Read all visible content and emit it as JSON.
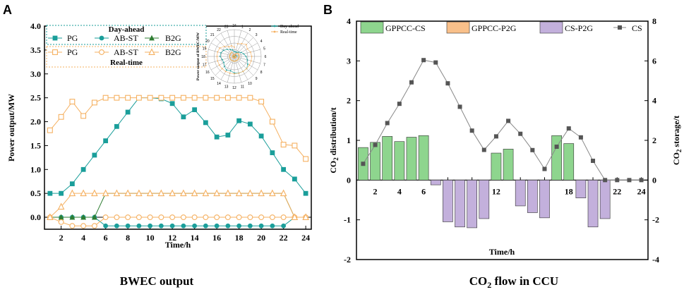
{
  "panels": {
    "A": {
      "letter": "A",
      "caption": "BWEC output",
      "chart_data": {
        "type": "line",
        "xlabel": "Time/h",
        "ylabel": "Power output/MW",
        "xlim": [
          0.5,
          24.5
        ],
        "ylim": [
          -0.25,
          4.0
        ],
        "xticks": [
          2,
          4,
          6,
          8,
          10,
          12,
          14,
          16,
          18,
          20,
          22,
          24
        ],
        "yticks": [
          0.0,
          0.5,
          1.0,
          1.5,
          2.0,
          2.5,
          3.0,
          3.5,
          4.0
        ],
        "x": [
          1,
          2,
          3,
          4,
          5,
          6,
          7,
          8,
          9,
          10,
          11,
          12,
          13,
          14,
          15,
          16,
          17,
          18,
          19,
          20,
          21,
          22,
          23,
          24
        ],
        "legend_day_ahead_title": "Day-ahead",
        "legend_real_time_title": "Real-time",
        "series": [
          {
            "name": "PG",
            "group": "Day-ahead",
            "color": "#1a9e9a",
            "marker": "square",
            "values": [
              0.5,
              0.5,
              0.7,
              1.0,
              1.3,
              1.6,
              1.9,
              2.2,
              2.5,
              2.5,
              2.48,
              2.38,
              2.1,
              2.25,
              1.98,
              1.68,
              1.72,
              2.02,
              1.95,
              1.7,
              1.35,
              1.0,
              0.8,
              0.5
            ]
          },
          {
            "name": "AB-ST",
            "group": "Day-ahead",
            "color": "#1a9e9a",
            "marker": "circle",
            "values": [
              0,
              0,
              0,
              0,
              0,
              -0.18,
              -0.18,
              -0.18,
              -0.18,
              -0.18,
              -0.18,
              -0.18,
              -0.18,
              -0.18,
              -0.18,
              -0.18,
              -0.18,
              -0.18,
              -0.18,
              -0.18,
              -0.18,
              -0.18,
              0,
              0
            ]
          },
          {
            "name": "B2G",
            "group": "Day-ahead",
            "color": "#2e7d32",
            "marker": "triangle",
            "values": [
              0,
              0,
              0,
              0,
              0,
              0.5,
              0.5,
              0.5,
              0.5,
              0.5,
              0.5,
              0.5,
              0.5,
              0.5,
              0.5,
              0.5,
              0.5,
              0.5,
              0.5,
              0.5,
              0.5,
              0.5,
              0,
              0
            ]
          },
          {
            "name": "PG",
            "group": "Real-time",
            "color": "#f5b060",
            "marker": "open-square",
            "values": [
              1.82,
              2.1,
              2.42,
              2.12,
              2.4,
              2.5,
              2.5,
              2.5,
              2.5,
              2.5,
              2.5,
              2.5,
              2.5,
              2.5,
              2.5,
              2.5,
              2.5,
              2.5,
              2.5,
              2.42,
              2.0,
              1.52,
              1.5,
              1.22
            ]
          },
          {
            "name": "AB-ST",
            "group": "Real-time",
            "color": "#f5b060",
            "marker": "open-circle",
            "values": [
              0,
              -0.1,
              -0.18,
              -0.18,
              -0.18,
              0,
              0,
              0,
              0,
              0,
              0,
              0,
              0,
              0,
              0,
              0,
              0,
              0,
              0,
              0,
              0,
              0,
              0,
              0
            ]
          },
          {
            "name": "B2G",
            "group": "Real-time",
            "color": "#f5b060",
            "marker": "open-triangle",
            "values": [
              0,
              0.22,
              0.5,
              0.5,
              0.5,
              0.5,
              0.5,
              0.5,
              0.5,
              0.5,
              0.5,
              0.5,
              0.5,
              0.5,
              0.5,
              0.5,
              0.5,
              0.5,
              0.5,
              0.5,
              0.5,
              0.5,
              0,
              0
            ]
          }
        ],
        "inset": {
          "type": "polar",
          "ylabel": "Power output of BWEC/MW",
          "angle_labels": [
            "24",
            "1",
            "2",
            "3",
            "4",
            "5",
            "6",
            "7",
            "8",
            "9",
            "10",
            "11",
            "12",
            "13",
            "14",
            "15",
            "16",
            "17",
            "18",
            "19",
            "20",
            "21",
            "22",
            "23"
          ],
          "legend": [
            "Day-ahead",
            "Real-time"
          ],
          "colors": [
            "#1a9e9a",
            "#f5b060"
          ]
        }
      }
    },
    "B": {
      "letter": "B",
      "caption_prefix": "CO",
      "caption_sub": "2",
      "caption_suffix": " flow in CCU",
      "chart_data": {
        "type": "bar",
        "xlabel": "Time/h",
        "ylabel_left": {
          "prefix": "CO",
          "sub": "2",
          "suffix": " distribution/t"
        },
        "ylabel_right": {
          "prefix": "CO",
          "sub": "2",
          "suffix": " storage/t"
        },
        "x": [
          1,
          2,
          3,
          4,
          5,
          6,
          7,
          8,
          9,
          10,
          11,
          12,
          13,
          14,
          15,
          16,
          17,
          18,
          19,
          20,
          21,
          22,
          23,
          24
        ],
        "xticks": [
          2,
          4,
          6,
          8,
          10,
          12,
          14,
          16,
          18,
          20,
          22,
          24
        ],
        "ylim_left": [
          -2,
          4
        ],
        "yticks_left": [
          -2,
          -1,
          0,
          1,
          2,
          3,
          4
        ],
        "ylim_right": [
          -4,
          8
        ],
        "yticks_right": [
          -4,
          -2,
          0,
          2,
          4,
          6,
          8
        ],
        "series": [
          {
            "name": "GPPCC-CS",
            "color": "#8ed58e",
            "axis": "left",
            "values": [
              0.82,
              0.95,
              1.1,
              0.97,
              1.08,
              1.12,
              0,
              0,
              0,
              0,
              0,
              0.68,
              0.78,
              0,
              0,
              0,
              1.12,
              0.92,
              0,
              0,
              0,
              0,
              0,
              0
            ]
          },
          {
            "name": "GPPCC-P2G",
            "color": "#f9c08a",
            "axis": "left",
            "values": [
              0,
              0,
              0,
              0,
              0,
              0,
              0,
              0,
              0,
              0,
              0,
              0,
              0,
              0,
              0,
              0,
              0,
              0,
              0,
              0,
              0,
              0,
              0,
              0
            ]
          },
          {
            "name": "CS-P2G",
            "color": "#c3b0dc",
            "axis": "left",
            "values": [
              0,
              0,
              0,
              0,
              0,
              0,
              -0.12,
              -1.05,
              -1.18,
              -1.2,
              -0.97,
              0,
              0,
              -0.65,
              -0.82,
              -0.95,
              0,
              0,
              -0.45,
              -1.18,
              -0.97,
              0,
              0,
              0
            ]
          },
          {
            "name": "CS",
            "color": "#555555",
            "axis": "right",
            "values": [
              0.82,
              1.77,
              2.87,
              3.84,
              4.92,
              6.04,
              5.92,
              4.87,
              3.69,
              2.49,
              1.52,
              2.2,
              2.98,
              2.33,
              1.51,
              0.56,
              1.68,
              2.6,
              2.15,
              0.97,
              0,
              0,
              0,
              0
            ]
          }
        ]
      }
    }
  }
}
